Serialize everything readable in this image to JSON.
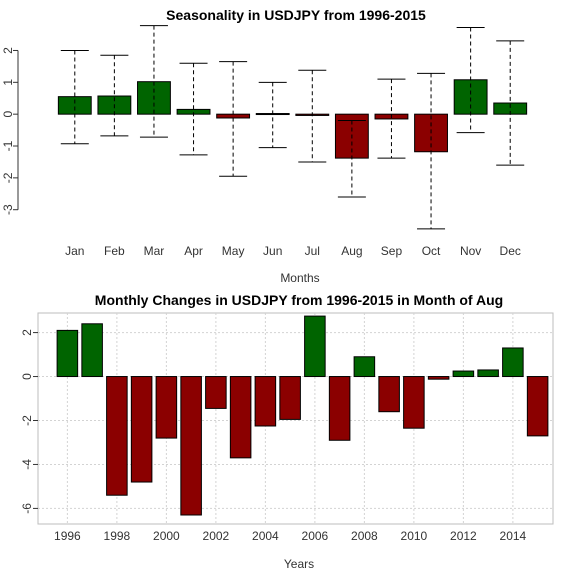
{
  "chart_data": [
    {
      "type": "bar",
      "title": "Seasonality in USDJPY from 1996-2015",
      "xlabel": "Months",
      "ylabel": "",
      "ylim": [
        -3.7,
        2.8
      ],
      "yticks": [
        2,
        1,
        0,
        -1,
        -2,
        -3
      ],
      "categories": [
        "Jan",
        "Feb",
        "Mar",
        "Apr",
        "May",
        "Jun",
        "Jul",
        "Aug",
        "Sep",
        "Oct",
        "Nov",
        "Dec"
      ],
      "values": [
        0.55,
        0.57,
        1.02,
        0.15,
        -0.12,
        0.02,
        -0.04,
        -1.38,
        -0.15,
        -1.18,
        1.08,
        0.35
      ],
      "error_low": [
        -0.93,
        -0.68,
        -0.72,
        -1.28,
        -1.95,
        -1.05,
        -1.5,
        -2.6,
        -1.38,
        -3.6,
        -0.58,
        -1.6
      ],
      "error_high": [
        2.0,
        1.85,
        2.78,
        1.6,
        1.65,
        1.0,
        1.38,
        -0.2,
        1.1,
        1.28,
        2.72,
        2.3
      ],
      "grid": false,
      "colors": {
        "positive": "#006400",
        "negative": "#8B0000"
      }
    },
    {
      "type": "bar",
      "title": "Monthly Changes in USDJPY from 1996-2015 in Month of Aug",
      "xlabel": "Years",
      "ylabel": "",
      "ylim": [
        -6.3,
        2.8
      ],
      "yticks": [
        2,
        0,
        -2,
        -4,
        -6
      ],
      "xticks": [
        "1996",
        "1998",
        "2000",
        "2002",
        "2004",
        "2006",
        "2008",
        "2010",
        "2012",
        "2014"
      ],
      "categories": [
        "1996",
        "1997",
        "1998",
        "1999",
        "2000",
        "2001",
        "2002",
        "2003",
        "2004",
        "2005",
        "2006",
        "2007",
        "2008",
        "2009",
        "2010",
        "2011",
        "2012",
        "2013",
        "2014",
        "2015"
      ],
      "values": [
        2.1,
        2.4,
        -5.4,
        -4.8,
        -2.8,
        -6.3,
        -1.45,
        -3.7,
        -2.25,
        -1.95,
        2.75,
        -2.9,
        0.9,
        -1.6,
        -2.35,
        -0.12,
        0.25,
        0.3,
        1.3,
        -2.7
      ],
      "grid": true,
      "colors": {
        "positive": "#006400",
        "negative": "#8B0000"
      }
    }
  ]
}
